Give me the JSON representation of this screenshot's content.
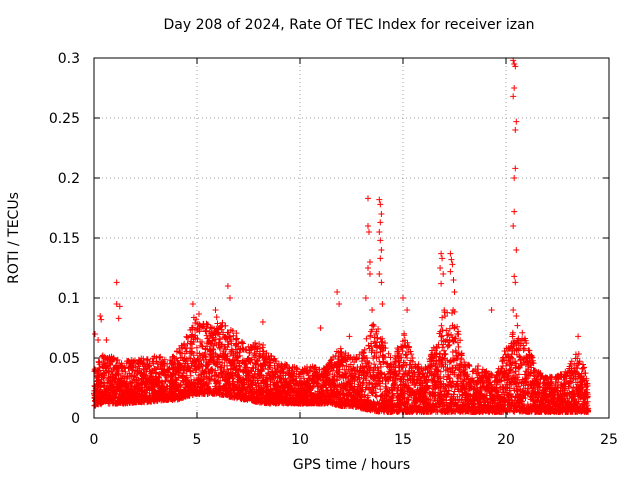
{
  "chart_data": {
    "type": "scatter",
    "title": "Day 208 of 2024, Rate Of TEC Index for receiver izan",
    "xlabel": "GPS time / hours",
    "ylabel": "ROTI / TECUs",
    "xlim": [
      0,
      25
    ],
    "ylim": [
      0,
      0.3
    ],
    "xticks": [
      "0",
      "5",
      "10",
      "15",
      "20",
      "25"
    ],
    "yticks": [
      "0",
      "0.05",
      "0.1",
      "0.15",
      "0.2",
      "0.25",
      "0.3"
    ],
    "grid": true,
    "marker": "+",
    "color": "#ff0000",
    "series": [
      {
        "name": "ROTI",
        "envelope": {
          "x": [
            0,
            0.5,
            1,
            1.5,
            2,
            2.5,
            3,
            3.5,
            4,
            4.5,
            5,
            5.5,
            6,
            6.5,
            7,
            7.5,
            8,
            8.5,
            9,
            9.5,
            10,
            10.5,
            11,
            11.5,
            12,
            12.5,
            13,
            13.5,
            14,
            14.5,
            15,
            15.5,
            16,
            16.5,
            17,
            17.5,
            18,
            18.5,
            19,
            19.5,
            20,
            20.5,
            21,
            21.5,
            22,
            22.5,
            23,
            23.5,
            24
          ],
          "low": [
            0.01,
            0.012,
            0.012,
            0.012,
            0.013,
            0.013,
            0.014,
            0.015,
            0.015,
            0.018,
            0.02,
            0.02,
            0.02,
            0.018,
            0.016,
            0.015,
            0.013,
            0.012,
            0.012,
            0.012,
            0.012,
            0.012,
            0.012,
            0.012,
            0.01,
            0.01,
            0.008,
            0.006,
            0.005,
            0.005,
            0.005,
            0.005,
            0.005,
            0.005,
            0.005,
            0.005,
            0.005,
            0.005,
            0.005,
            0.005,
            0.005,
            0.005,
            0.005,
            0.005,
            0.005,
            0.005,
            0.005,
            0.005,
            0.005
          ],
          "high": [
            0.04,
            0.055,
            0.05,
            0.048,
            0.05,
            0.05,
            0.052,
            0.05,
            0.055,
            0.07,
            0.09,
            0.08,
            0.085,
            0.075,
            0.07,
            0.06,
            0.065,
            0.055,
            0.045,
            0.045,
            0.04,
            0.045,
            0.04,
            0.05,
            0.06,
            0.05,
            0.055,
            0.08,
            0.07,
            0.045,
            0.075,
            0.05,
            0.04,
            0.06,
            0.09,
            0.09,
            0.045,
            0.045,
            0.04,
            0.035,
            0.06,
            0.08,
            0.065,
            0.04,
            0.035,
            0.035,
            0.04,
            0.06,
            0.03
          ]
        },
        "outliers": [
          [
            0.05,
            0.07
          ],
          [
            0.2,
            0.065
          ],
          [
            0.3,
            0.085
          ],
          [
            0.35,
            0.082
          ],
          [
            0.6,
            0.065
          ],
          [
            1.1,
            0.113
          ],
          [
            1.1,
            0.095
          ],
          [
            1.25,
            0.093
          ],
          [
            1.2,
            0.083
          ],
          [
            4.8,
            0.095
          ],
          [
            5.9,
            0.09
          ],
          [
            6.5,
            0.11
          ],
          [
            6.6,
            0.1
          ],
          [
            8.2,
            0.08
          ],
          [
            11.0,
            0.075
          ],
          [
            11.8,
            0.105
          ],
          [
            11.9,
            0.095
          ],
          [
            12.4,
            0.068
          ],
          [
            13.3,
            0.183
          ],
          [
            13.3,
            0.16
          ],
          [
            13.35,
            0.155
          ],
          [
            13.4,
            0.13
          ],
          [
            13.3,
            0.125
          ],
          [
            13.4,
            0.12
          ],
          [
            13.2,
            0.1
          ],
          [
            13.5,
            0.09
          ],
          [
            13.85,
            0.182
          ],
          [
            13.9,
            0.178
          ],
          [
            13.95,
            0.17
          ],
          [
            13.9,
            0.163
          ],
          [
            13.85,
            0.155
          ],
          [
            13.9,
            0.148
          ],
          [
            13.95,
            0.14
          ],
          [
            13.9,
            0.133
          ],
          [
            13.85,
            0.12
          ],
          [
            13.95,
            0.113
          ],
          [
            14.0,
            0.095
          ],
          [
            15.0,
            0.1
          ],
          [
            15.2,
            0.09
          ],
          [
            16.85,
            0.137
          ],
          [
            16.9,
            0.133
          ],
          [
            16.8,
            0.125
          ],
          [
            16.95,
            0.12
          ],
          [
            16.85,
            0.112
          ],
          [
            17.3,
            0.137
          ],
          [
            17.35,
            0.132
          ],
          [
            17.4,
            0.128
          ],
          [
            17.3,
            0.122
          ],
          [
            17.45,
            0.115
          ],
          [
            17.5,
            0.105
          ],
          [
            19.3,
            0.09
          ],
          [
            20.35,
            0.298
          ],
          [
            20.4,
            0.295
          ],
          [
            20.45,
            0.293
          ],
          [
            20.4,
            0.275
          ],
          [
            20.35,
            0.268
          ],
          [
            20.5,
            0.247
          ],
          [
            20.45,
            0.24
          ],
          [
            20.45,
            0.208
          ],
          [
            20.4,
            0.2
          ],
          [
            20.4,
            0.172
          ],
          [
            20.35,
            0.16
          ],
          [
            20.5,
            0.14
          ],
          [
            20.4,
            0.118
          ],
          [
            20.45,
            0.113
          ],
          [
            20.35,
            0.09
          ],
          [
            20.5,
            0.085
          ],
          [
            23.5,
            0.068
          ]
        ]
      }
    ]
  }
}
